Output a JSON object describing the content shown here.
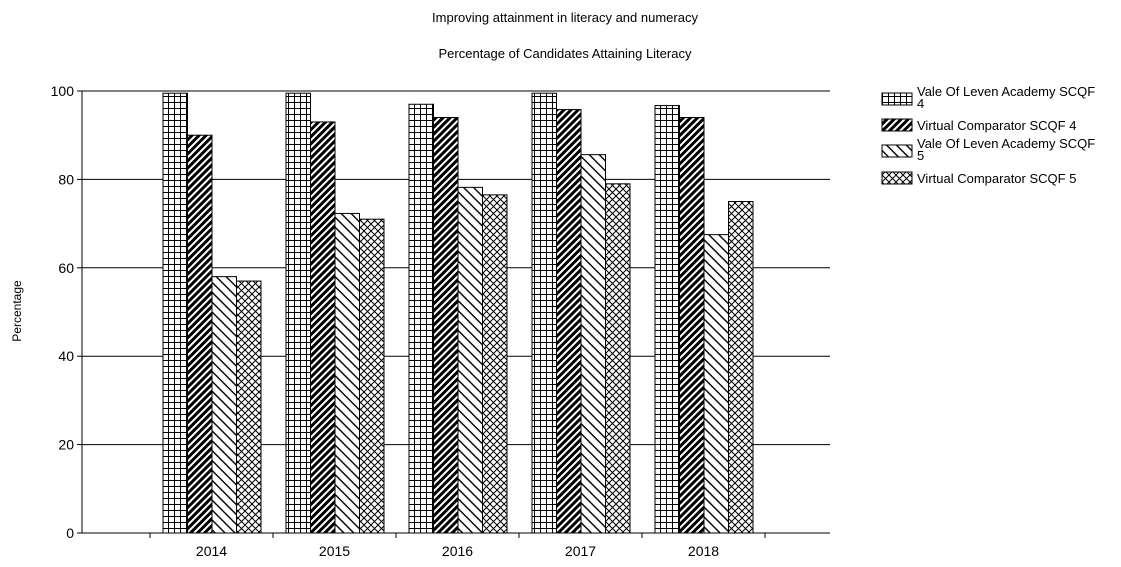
{
  "chart_data": {
    "type": "bar",
    "title": "Improving attainment in literacy and numeracy",
    "subtitle": "Percentage of Candidates Attaining Literacy",
    "xlabel": "",
    "ylabel": "Percentage",
    "categories": [
      "2014",
      "2015",
      "2016",
      "2017",
      "2018"
    ],
    "ylim": [
      0,
      100
    ],
    "yticks": [
      0,
      20,
      40,
      60,
      80,
      100
    ],
    "grid": "horizontal",
    "legend_position": "right",
    "series": [
      {
        "name": "Vale Of Leven Academy SCQF 4",
        "legend_line1": "Vale Of Leven Academy SCQF",
        "legend_line2": "4",
        "pattern": "grid",
        "values": [
          99.5,
          99.5,
          97,
          99.5,
          96.7
        ]
      },
      {
        "name": "Virtual Comparator SCQF 4",
        "legend_line1": "Virtual Comparator SCQF 4",
        "legend_line2": "",
        "pattern": "dense-diagonal",
        "values": [
          90,
          93,
          94,
          95.8,
          94
        ]
      },
      {
        "name": "Vale Of Leven Academy SCQF 5",
        "legend_line1": "Vale Of Leven Academy SCQF",
        "legend_line2": "5",
        "pattern": "back-diagonal",
        "values": [
          58,
          72.3,
          78.2,
          85.6,
          67.5
        ]
      },
      {
        "name": "Virtual Comparator SCQF 5",
        "legend_line1": "Virtual Comparator SCQF 5",
        "legend_line2": "",
        "pattern": "crosshatch",
        "values": [
          57,
          71,
          76.5,
          79,
          75
        ]
      }
    ]
  }
}
